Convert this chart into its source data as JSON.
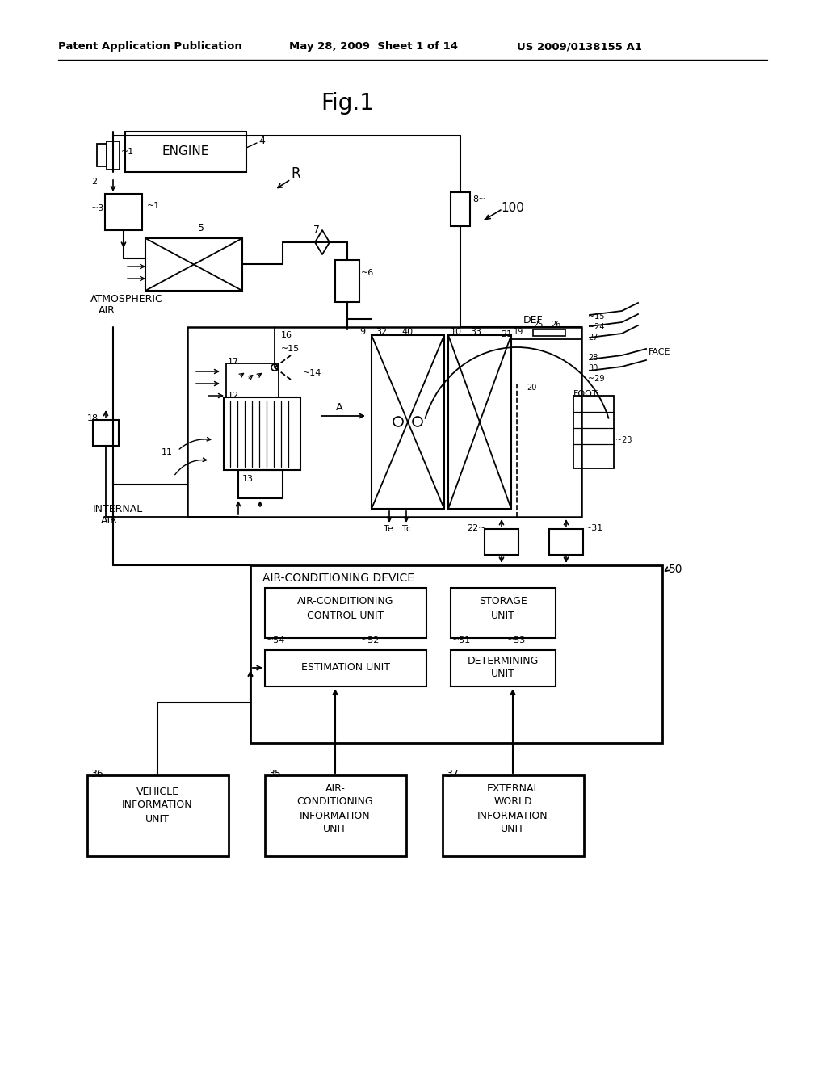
{
  "bg_color": "#ffffff",
  "header_left": "Patent Application Publication",
  "header_mid": "May 28, 2009  Sheet 1 of 14",
  "header_right": "US 2009/0138155 A1",
  "fig_title": "Fig.1",
  "lc": "#000000",
  "tc": "#000000"
}
